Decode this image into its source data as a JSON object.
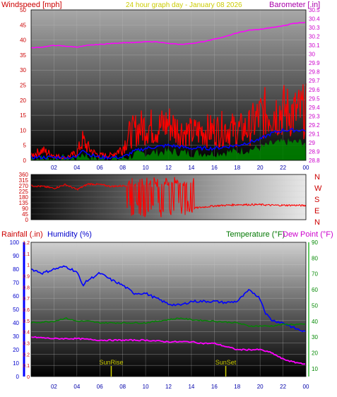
{
  "header": {
    "wind_label": "Windspeed [mph]",
    "title": "24 hour graph day - January 08 2026",
    "baro_label": "Barometer [.in]"
  },
  "bottom_header": {
    "rain_label": "Rainfall (.in)",
    "humidity_label": "Humidity (%)",
    "temp_label": "Temperature (°F)",
    "dew_label": "Dew Point (°F)"
  },
  "sunrise_label": "SunRise",
  "sunset_label": "SunSet",
  "compass": [
    "N",
    "W",
    "S",
    "E",
    "N"
  ],
  "colors": {
    "wind": "#ff0000",
    "wind_avg": "#0000ff",
    "gust_low": "#00aa00",
    "baro": "#ff00ff",
    "humidity": "#0000ff",
    "temperature": "#008800",
    "dewpoint": "#ff00ff",
    "sun_marker": "#cccc00"
  },
  "chart_data": [
    {
      "type": "line",
      "x_ticks": [
        "02",
        "04",
        "06",
        "08",
        "10",
        "12",
        "14",
        "16",
        "18",
        "20",
        "22",
        "00"
      ],
      "left_axis": {
        "label": "Windspeed [mph]",
        "ylim": [
          0,
          50
        ],
        "ticks": [
          0,
          5,
          10,
          15,
          20,
          25,
          30,
          35,
          40,
          45,
          50
        ]
      },
      "right_axis": {
        "label": "Barometer [.in]",
        "ylim": [
          28.8,
          30.5
        ],
        "ticks": [
          "28.8",
          "28.9",
          "29",
          "29.1",
          "29.2",
          "29.3",
          "29.4",
          "29.5",
          "29.6",
          "29.7",
          "29.8",
          "29.9",
          "30",
          "30.1",
          "30.2",
          "30.3",
          "30.4",
          "30.5"
        ]
      },
      "series": [
        {
          "name": "Windspeed",
          "x": [
            0,
            1,
            1.5,
            2,
            3,
            4,
            4.5,
            5,
            5.5,
            6,
            7,
            8,
            8.5,
            9,
            10,
            11,
            12,
            13,
            14,
            15,
            16,
            17,
            18,
            19,
            20,
            21,
            22,
            23,
            24
          ],
          "values": [
            2,
            4,
            3,
            2,
            1,
            3,
            8,
            5,
            3,
            2,
            2,
            5,
            10,
            12,
            14,
            13,
            15,
            12,
            11,
            12,
            12,
            13,
            12,
            13,
            18,
            20,
            20,
            19,
            20
          ]
        },
        {
          "name": "Average",
          "x": [
            0,
            2,
            4,
            4.5,
            5,
            6,
            8,
            9,
            10,
            12,
            14,
            16,
            18,
            20,
            21,
            22,
            24
          ],
          "values": [
            1,
            1,
            1,
            4,
            2,
            1,
            1,
            3,
            4,
            5,
            4,
            4,
            5,
            7,
            9,
            10,
            10
          ]
        },
        {
          "name": "Barometer",
          "x": [
            0,
            1,
            2,
            3,
            4,
            5,
            6,
            7,
            8,
            9,
            10,
            11,
            12,
            13,
            14,
            15,
            16,
            17,
            18,
            19,
            20,
            21,
            22,
            23,
            24
          ],
          "values": [
            30.07,
            30.08,
            30.1,
            30.09,
            30.08,
            30.1,
            30.11,
            30.12,
            30.13,
            30.13,
            30.14,
            30.14,
            30.12,
            30.11,
            30.12,
            30.14,
            30.17,
            30.2,
            30.24,
            30.27,
            30.28,
            30.3,
            30.32,
            30.35,
            30.36
          ]
        }
      ]
    },
    {
      "type": "line",
      "x_ticks": [
        "02",
        "04",
        "06",
        "08",
        "10",
        "12",
        "14",
        "16",
        "18",
        "20",
        "22",
        "00"
      ],
      "left_axis": {
        "ylim": [
          0,
          360
        ],
        "ticks": [
          0,
          45,
          90,
          135,
          180,
          225,
          270,
          315,
          360
        ]
      },
      "series": [
        {
          "name": "Direction",
          "x": [
            0,
            1,
            2,
            3,
            4,
            5,
            6,
            7,
            8,
            9,
            10,
            11,
            12,
            13,
            14,
            15,
            16,
            17,
            18,
            19,
            20,
            21,
            22,
            23,
            24
          ],
          "values": [
            270,
            265,
            250,
            280,
            240,
            285,
            280,
            265,
            270,
            280,
            275,
            270,
            260,
            250,
            90,
            100,
            110,
            115,
            120,
            120,
            120,
            115,
            115,
            115,
            112
          ]
        }
      ]
    },
    {
      "type": "line",
      "x_ticks": [
        "02",
        "04",
        "06",
        "08",
        "10",
        "12",
        "14",
        "16",
        "18",
        "20",
        "22",
        "00"
      ],
      "left_axis": {
        "label": "Rainfall (.in)",
        "ylim": [
          0,
          1.2
        ],
        "ticks": [
          "0",
          "0.1",
          "0.2",
          "0.3",
          "0.4",
          "0.5",
          "0.6",
          "0.7",
          "0.8",
          "0.9",
          "1",
          "1.1",
          "1.2"
        ]
      },
      "humidity_axis": {
        "label": "Humidity (%)",
        "ylim": [
          0,
          100
        ],
        "ticks": [
          0,
          10,
          20,
          30,
          40,
          50,
          60,
          70,
          80,
          90,
          100
        ]
      },
      "right_axis": {
        "label": "Temperature (°F)",
        "ylim": [
          5,
          90
        ],
        "ticks": [
          10,
          20,
          30,
          40,
          50,
          60,
          70,
          80,
          90
        ]
      },
      "series": [
        {
          "name": "Humidity",
          "x": [
            0,
            1,
            2,
            3,
            4,
            4.5,
            5,
            6,
            7,
            8,
            9,
            10,
            11,
            12,
            13,
            14,
            15,
            16,
            17,
            18,
            19,
            19.5,
            20,
            20.5,
            21,
            22,
            23,
            24
          ],
          "values": [
            80,
            77,
            80,
            82,
            78,
            68,
            72,
            77,
            72,
            68,
            62,
            62,
            58,
            54,
            53,
            56,
            56,
            56,
            55,
            56,
            64,
            62,
            58,
            47,
            42,
            40,
            36,
            33
          ]
        },
        {
          "name": "Temperature",
          "x": [
            0,
            2,
            3,
            4,
            5,
            6,
            8,
            10,
            12,
            13,
            14,
            16,
            18,
            19,
            20,
            21,
            22,
            23,
            24
          ],
          "values": [
            39,
            40,
            42,
            40,
            40,
            39,
            39,
            39,
            41,
            42,
            41,
            40,
            39,
            37,
            37,
            37,
            38,
            38,
            38
          ]
        },
        {
          "name": "Dew Point",
          "x": [
            0,
            2,
            4,
            6,
            8,
            10,
            12,
            13,
            14,
            15,
            16,
            17,
            18,
            19,
            20,
            21,
            22,
            23,
            24
          ],
          "values": [
            30,
            29,
            29,
            28,
            28,
            28,
            27,
            27,
            27,
            26,
            26,
            24,
            22,
            22,
            22,
            20,
            16,
            14,
            13
          ]
        }
      ],
      "markers": {
        "sunrise": 7.0,
        "sunset": 17.0
      }
    }
  ]
}
